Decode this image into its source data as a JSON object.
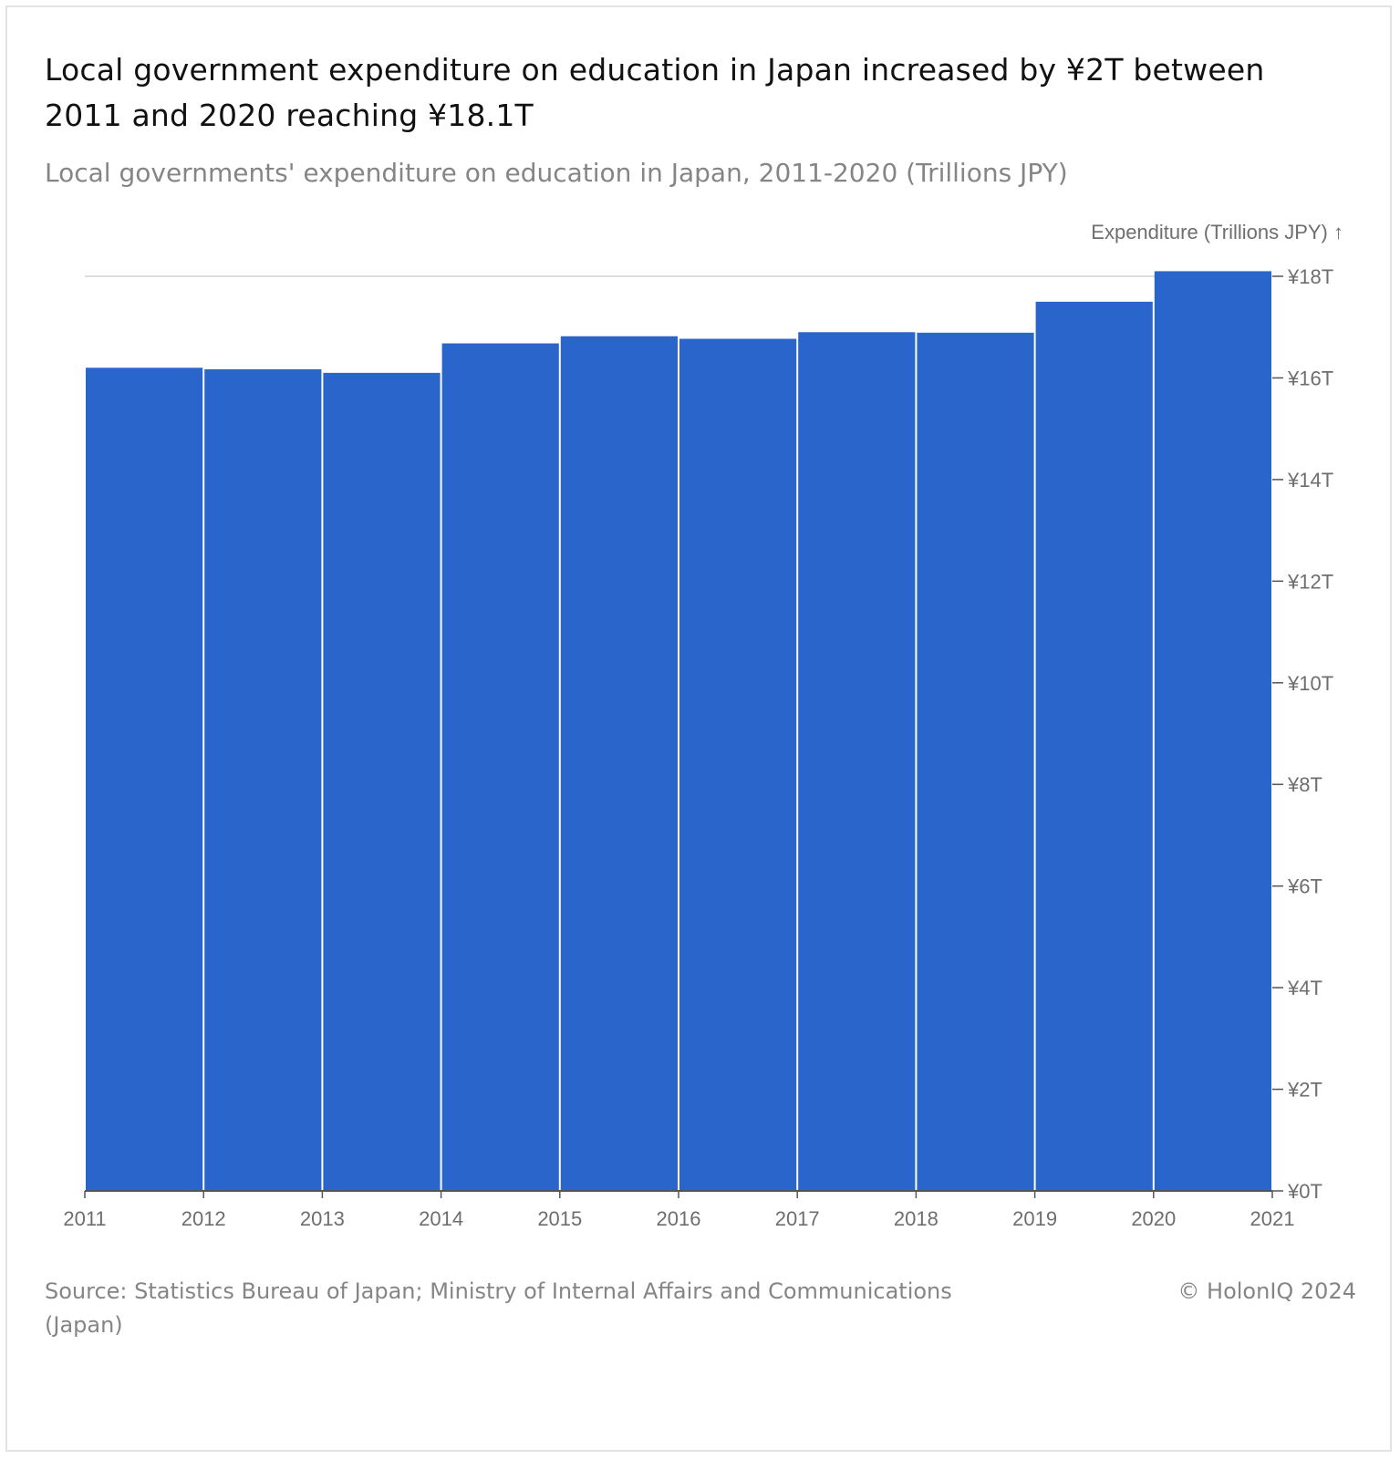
{
  "header": {
    "title": "Local government expenditure on education in Japan increased by ¥2T between 2011 and 2020 reaching ¥18.1T",
    "subtitle": "Local governments' expenditure on education in Japan, 2011-2020 (Trillions JPY)"
  },
  "footer": {
    "source": "Source: Statistics Bureau of Japan; Ministry of Internal Affairs and Communications (Japan)",
    "copyright": "© HolonIQ 2024"
  },
  "colors": {
    "bar": "#2a65cc",
    "axis": "#555555",
    "gridline": "#dddddd",
    "muted_text": "#858585"
  },
  "chart_data": {
    "type": "bar",
    "title": "Local government expenditure on education in Japan increased by ¥2T between 2011 and 2020 reaching ¥18.1T",
    "subtitle": "Local governments' expenditure on education in Japan, 2011-2020 (Trillions JPY)",
    "ylabel": "Expenditure (Trillions JPY) ↑",
    "xlabel": "",
    "y_axis_position": "right",
    "ylim": [
      0,
      18
    ],
    "y_ticks": [
      0,
      2,
      4,
      6,
      8,
      10,
      12,
      14,
      16,
      18
    ],
    "y_tick_labels": [
      "¥0T",
      "¥2T",
      "¥4T",
      "¥6T",
      "¥8T",
      "¥10T",
      "¥12T",
      "¥14T",
      "¥16T",
      "¥18T"
    ],
    "x_ticks": [
      "2011",
      "2012",
      "2013",
      "2014",
      "2015",
      "2016",
      "2017",
      "2018",
      "2019",
      "2020",
      "2021"
    ],
    "bars": [
      {
        "x_start": 2011,
        "x_end": 2012,
        "value": 16.2
      },
      {
        "x_start": 2012,
        "x_end": 2013,
        "value": 16.17
      },
      {
        "x_start": 2013,
        "x_end": 2014,
        "value": 16.1
      },
      {
        "x_start": 2014,
        "x_end": 2015,
        "value": 16.68
      },
      {
        "x_start": 2015,
        "x_end": 2016,
        "value": 16.82
      },
      {
        "x_start": 2016,
        "x_end": 2017,
        "value": 16.77
      },
      {
        "x_start": 2017,
        "x_end": 2018,
        "value": 16.9
      },
      {
        "x_start": 2018,
        "x_end": 2019,
        "value": 16.89
      },
      {
        "x_start": 2019,
        "x_end": 2020,
        "value": 17.5
      },
      {
        "x_start": 2020,
        "x_end": 2021,
        "value": 18.1
      }
    ],
    "grid": "horizontal line at top tick only",
    "legend": "none"
  }
}
